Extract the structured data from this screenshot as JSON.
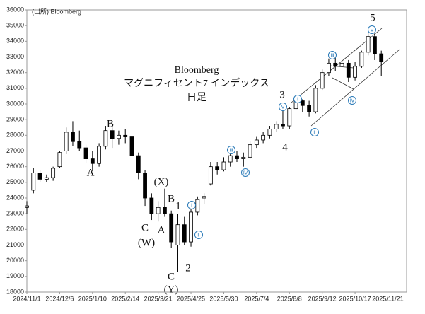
{
  "chart_data": {
    "type": "candlestick",
    "title": [
      "Bloomberg",
      "マグニフィセント7 インデックス",
      "日足"
    ],
    "source": "(出所) Bloomberg",
    "color": "#000000",
    "x": [
      "2024/11/1",
      "2024/11/8",
      "2024/11/15",
      "2024/11/22",
      "2024/11/29",
      "2024/12/6",
      "2024/12/13",
      "2024/12/20",
      "2024/12/27",
      "2025/1/3",
      "2025/1/10",
      "2025/1/17",
      "2025/1/24",
      "2025/1/31",
      "2025/2/7",
      "2025/2/14",
      "2025/2/21",
      "2025/2/28",
      "2025/3/7",
      "2025/3/14",
      "2025/3/21",
      "2025/3/28",
      "2025/4/4",
      "2025/4/11",
      "2025/4/18",
      "2025/4/25",
      "2025/5/2",
      "2025/5/9",
      "2025/5/16",
      "2025/5/23",
      "2025/5/30",
      "2025/6/6",
      "2025/6/13",
      "2025/6/20",
      "2025/6/27",
      "2025/7/4",
      "2025/7/11",
      "2025/7/18",
      "2025/7/25",
      "2025/8/1",
      "2025/8/8",
      "2025/8/15",
      "2025/8/22",
      "2025/8/29",
      "2025/9/5",
      "2025/9/12",
      "2025/9/19",
      "2025/9/26",
      "2025/10/3",
      "2025/10/10",
      "2025/10/17",
      "2025/10/24",
      "2025/10/31",
      "2025/11/7",
      "2025/11/14"
    ],
    "open": [
      23400,
      24500,
      25600,
      25200,
      25300,
      26000,
      27000,
      28200,
      27600,
      27200,
      26500,
      26200,
      27300,
      28300,
      27800,
      28000,
      27900,
      26700,
      25600,
      24000,
      23000,
      23400,
      23000,
      21000,
      22300,
      21200,
      23100,
      24000,
      24900,
      26000,
      25800,
      26300,
      26700,
      26500,
      26600,
      27400,
      27700,
      28000,
      28400,
      28700,
      28600,
      29700,
      30200,
      29900,
      29500,
      31000,
      32000,
      32600,
      32400,
      32600,
      31700,
      32400,
      33300,
      34300,
      33200
    ],
    "high": [
      23800,
      25900,
      25800,
      25500,
      26000,
      27000,
      28500,
      28900,
      28300,
      27400,
      27000,
      27500,
      28600,
      28500,
      28300,
      28400,
      28000,
      26900,
      25800,
      24300,
      23800,
      24600,
      23200,
      23000,
      22800,
      23300,
      24100,
      24300,
      26300,
      26300,
      26600,
      26900,
      27000,
      26900,
      27600,
      27900,
      28200,
      28600,
      28900,
      29600,
      29800,
      30400,
      30300,
      30200,
      31200,
      32200,
      32900,
      33000,
      32800,
      32800,
      32700,
      33400,
      34800,
      34500,
      33400
    ],
    "low": [
      23000,
      24300,
      25000,
      25000,
      25100,
      25900,
      26800,
      27300,
      27000,
      26200,
      25700,
      26000,
      27100,
      27200,
      27400,
      27500,
      26500,
      25200,
      23500,
      22600,
      22500,
      22800,
      20800,
      19300,
      21000,
      20900,
      22900,
      23600,
      24800,
      25500,
      25700,
      26000,
      26300,
      26000,
      26500,
      27200,
      27500,
      27800,
      28200,
      28400,
      28400,
      29600,
      29500,
      29200,
      29400,
      30900,
      31800,
      32100,
      32000,
      31400,
      31500,
      32300,
      33100,
      32800,
      31800
    ],
    "close": [
      23500,
      25600,
      25200,
      25300,
      25900,
      26900,
      28200,
      27600,
      27200,
      26500,
      26200,
      27300,
      28300,
      27800,
      28000,
      27900,
      26700,
      25600,
      24000,
      23000,
      23400,
      23000,
      21200,
      22300,
      21200,
      23100,
      23900,
      24100,
      26000,
      25800,
      26300,
      26700,
      26500,
      26600,
      27400,
      27700,
      28000,
      28400,
      28700,
      28600,
      29700,
      30200,
      29900,
      29500,
      31000,
      32000,
      32600,
      32400,
      32600,
      31700,
      32400,
      33300,
      34300,
      33200,
      32700
    ],
    "xlim": [
      "2024/11/1",
      "2025/12/11"
    ],
    "xticks": [
      "2024/11/1",
      "2024/12/6",
      "2025/1/10",
      "2025/2/14",
      "2025/3/21",
      "2025/4/25",
      "2025/5/30",
      "2025/7/4",
      "2025/8/8",
      "2025/9/12",
      "2025/10/17",
      "2025/11/21"
    ],
    "ylim": [
      18000,
      36000
    ],
    "yticks": [
      18000,
      19000,
      20000,
      21000,
      22000,
      23000,
      24000,
      25000,
      26000,
      27000,
      28000,
      29000,
      30000,
      31000,
      32000,
      33000,
      34000,
      35000,
      36000
    ],
    "annotations": [
      "B",
      "A",
      "(X)",
      "B",
      "1",
      "C",
      "A",
      "(W)",
      "C",
      "(Y)",
      "2",
      "3",
      "4",
      "5"
    ],
    "wave_labels": [
      "Ⅰ",
      "Ⅱ",
      "Ⅲ",
      "Ⅳ",
      "Ⅴ",
      "Ⅰ",
      "Ⅱ",
      "Ⅲ",
      "Ⅳ",
      "Ⅴ"
    ]
  }
}
